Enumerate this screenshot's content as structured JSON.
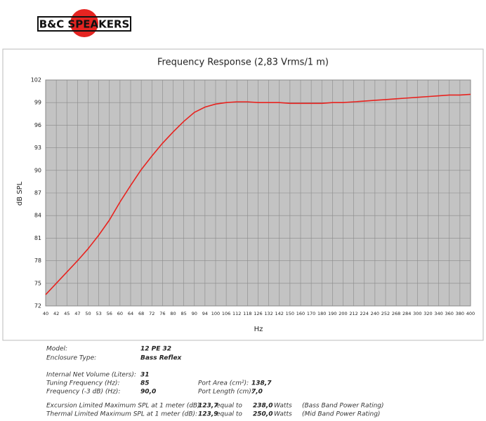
{
  "logo": "B&C SPEAKERS",
  "chart_data": {
    "type": "line",
    "title": "Frequency Response (2,83 Vrms/1 m)",
    "x_label": "Hz",
    "y_label": "dB SPL",
    "categories": [
      "40",
      "42",
      "45",
      "47",
      "50",
      "53",
      "56",
      "60",
      "64",
      "68",
      "72",
      "76",
      "80",
      "85",
      "90",
      "94",
      "100",
      "106",
      "112",
      "118",
      "126",
      "132",
      "142",
      "150",
      "160",
      "170",
      "180",
      "190",
      "200",
      "212",
      "224",
      "240",
      "252",
      "268",
      "284",
      "300",
      "320",
      "340",
      "360",
      "380",
      "400"
    ],
    "values": [
      73.5,
      75.0,
      76.5,
      78.0,
      79.6,
      81.4,
      83.4,
      85.8,
      88.0,
      90.1,
      91.9,
      93.6,
      95.1,
      96.5,
      97.7,
      98.4,
      98.8,
      99.0,
      99.1,
      99.1,
      99.0,
      99.0,
      99.0,
      98.9,
      98.9,
      98.9,
      98.9,
      99.0,
      99.0,
      99.1,
      99.2,
      99.3,
      99.4,
      99.5,
      99.6,
      99.7,
      99.8,
      99.9,
      100.0,
      100.0,
      100.1
    ],
    "color": "#e8231f",
    "ylim": [
      72,
      102
    ],
    "yticks": [
      72,
      75,
      78,
      81,
      84,
      87,
      90,
      93,
      96,
      99,
      102
    ],
    "grid": true
  },
  "specs": [
    [
      "Model:",
      "12 PE 32"
    ],
    [
      "Enclosure Type:",
      "Bass Reflex"
    ],
    [
      "Internal  Net Volume (Liters):",
      "31"
    ],
    [
      "Tuning Frequency (Hz):",
      "85",
      "Port Area (cm²):",
      "138,7"
    ],
    [
      "Frequency (-3 dB) (Hz):",
      "90,0",
      "Port Length (cm):",
      "7,0"
    ],
    [
      "Excursion Limited Maximum SPL at 1 meter (dB):",
      "123,7",
      "equal to",
      "238,0",
      "Watts",
      "(Bass Band Power Rating)"
    ],
    [
      "Thermal Limited Maximum SPL at 1 meter (dB):",
      "123,9",
      "equal to",
      "250,0",
      "Watts",
      "(Mid Band Power Rating)"
    ]
  ]
}
